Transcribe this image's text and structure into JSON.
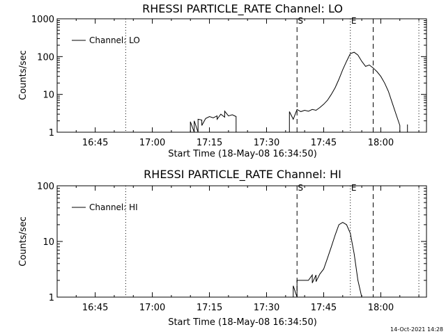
{
  "footer": {
    "date": "14-Oct-2021 14:28"
  },
  "chart_data": [
    {
      "type": "line",
      "title": "RHESSI PARTICLE_RATE Channel: LO",
      "xlabel": "Start Time (18-May-08 16:34:50)",
      "ylabel": "Counts/sec",
      "yscale": "log",
      "ylim": [
        1,
        1000
      ],
      "xlim": [
        "16:35",
        "18:12"
      ],
      "xticks": [
        "16:45",
        "17:00",
        "17:15",
        "17:30",
        "17:45",
        "18:00"
      ],
      "yticks": [
        "1",
        "10",
        "100",
        "1000"
      ],
      "grid": false,
      "legend": {
        "position": "top-left",
        "entries": [
          "Channel: LO"
        ]
      },
      "markers": [
        {
          "time": "16:53",
          "style": "dotted",
          "label": ""
        },
        {
          "time": "17:38",
          "style": "dashed",
          "label": "S"
        },
        {
          "time": "17:52",
          "style": "dotted",
          "label": "E"
        },
        {
          "time": "17:58",
          "style": "dashed",
          "label": ""
        },
        {
          "time": "18:10",
          "style": "dotted",
          "label": ""
        }
      ],
      "series": [
        {
          "name": "Channel: LO",
          "segments": [
            [
              [
                "17:10",
                1
              ],
              [
                "17:10",
                1.9
              ],
              [
                "17:11",
                1
              ],
              [
                "17:11",
                2.0
              ],
              [
                "17:12",
                1
              ],
              [
                "17:12",
                2.2
              ],
              [
                "17:13",
                2.1
              ],
              [
                "17:13",
                1.5
              ],
              [
                "17:14",
                2.3
              ],
              [
                "17:15",
                2.6
              ],
              [
                "17:16",
                2.4
              ],
              [
                "17:17",
                2.7
              ],
              [
                "17:17",
                2.2
              ],
              [
                "17:18",
                3.0
              ],
              [
                "17:19",
                2.5
              ],
              [
                "17:19",
                3.6
              ],
              [
                "17:20",
                2.7
              ],
              [
                "17:21",
                2.9
              ],
              [
                "17:22",
                2.6
              ],
              [
                "17:22",
                1
              ]
            ],
            [
              [
                "17:36",
                1
              ],
              [
                "17:36",
                3.5
              ],
              [
                "17:37",
                2.2
              ],
              [
                "17:38",
                4.0
              ],
              [
                "17:39",
                3.5
              ],
              [
                "17:40",
                3.8
              ],
              [
                "17:41",
                3.6
              ],
              [
                "17:42",
                4.0
              ],
              [
                "17:43",
                3.8
              ],
              [
                "17:44",
                4.5
              ],
              [
                "17:45",
                5.5
              ],
              [
                "17:46",
                7
              ],
              [
                "17:47",
                10
              ],
              [
                "17:48",
                15
              ],
              [
                "17:49",
                25
              ],
              [
                "17:50",
                45
              ],
              [
                "17:51",
                75
              ],
              [
                "17:52",
                120
              ],
              [
                "17:53",
                130
              ],
              [
                "17:54",
                110
              ],
              [
                "17:55",
                75
              ],
              [
                "17:56",
                55
              ],
              [
                "17:57",
                60
              ],
              [
                "17:58",
                50
              ],
              [
                "17:59",
                40
              ],
              [
                "18:00",
                30
              ],
              [
                "18:01",
                20
              ],
              [
                "18:02",
                12
              ],
              [
                "18:03",
                6
              ],
              [
                "18:04",
                3
              ],
              [
                "18:05",
                1.5
              ],
              [
                "18:05",
                1
              ]
            ],
            [
              [
                "18:07",
                1
              ],
              [
                "18:07",
                1.6
              ],
              [
                "18:07",
                1
              ]
            ]
          ]
        }
      ]
    },
    {
      "type": "line",
      "title": "RHESSI PARTICLE_RATE Channel: HI",
      "xlabel": "Start Time (18-May-08 16:34:50)",
      "ylabel": "Counts/sec",
      "yscale": "log",
      "ylim": [
        1,
        100
      ],
      "xlim": [
        "16:35",
        "18:12"
      ],
      "xticks": [
        "16:45",
        "17:00",
        "17:15",
        "17:30",
        "17:45",
        "18:00"
      ],
      "yticks": [
        "1",
        "10",
        "100"
      ],
      "grid": false,
      "legend": {
        "position": "top-left",
        "entries": [
          "Channel: HI"
        ]
      },
      "markers": [
        {
          "time": "16:53",
          "style": "dotted",
          "label": ""
        },
        {
          "time": "17:38",
          "style": "dashed",
          "label": "S"
        },
        {
          "time": "17:52",
          "style": "dotted",
          "label": "E"
        },
        {
          "time": "17:58",
          "style": "dashed",
          "label": ""
        },
        {
          "time": "18:10",
          "style": "dotted",
          "label": ""
        }
      ],
      "series": [
        {
          "name": "Channel: HI",
          "segments": [
            [
              [
                "17:37",
                1
              ],
              [
                "17:37",
                1.6
              ],
              [
                "17:38",
                1
              ],
              [
                "17:38",
                2.0
              ],
              [
                "17:39",
                2.0
              ],
              [
                "17:40",
                2.0
              ],
              [
                "17:41",
                2.0
              ],
              [
                "17:42",
                2.5
              ],
              [
                "17:42",
                1.8
              ],
              [
                "17:43",
                2.5
              ],
              [
                "17:43",
                1.9
              ],
              [
                "17:44",
                2.6
              ],
              [
                "17:45",
                3.2
              ],
              [
                "17:46",
                5
              ],
              [
                "17:47",
                8
              ],
              [
                "17:48",
                13
              ],
              [
                "17:49",
                20
              ],
              [
                "17:50",
                22
              ],
              [
                "17:51",
                20
              ],
              [
                "17:52",
                14
              ],
              [
                "17:53",
                6
              ],
              [
                "17:54",
                2
              ],
              [
                "17:55",
                1
              ]
            ]
          ]
        }
      ]
    }
  ]
}
